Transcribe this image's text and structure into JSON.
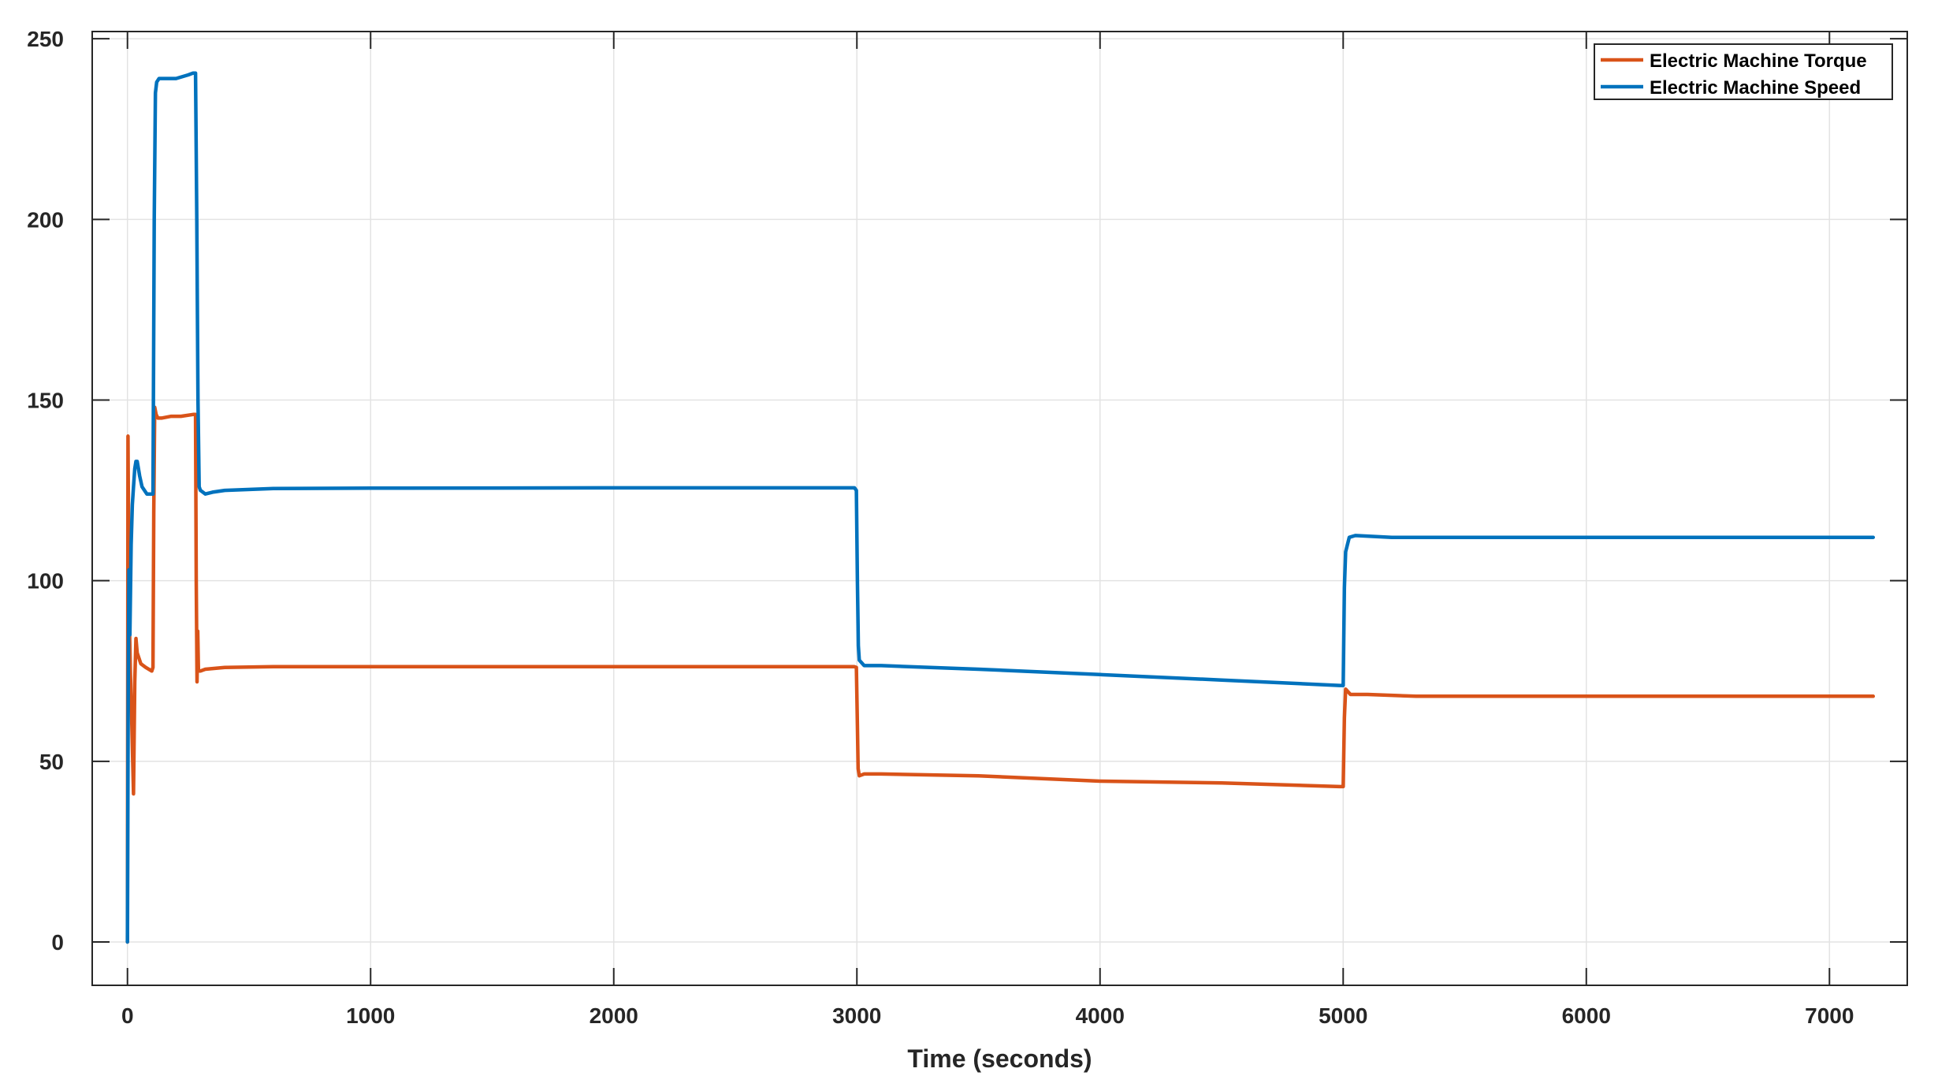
{
  "chart_data": {
    "type": "line",
    "title": "",
    "xlabel": "Time (seconds)",
    "ylabel": "",
    "xlim": [
      -145,
      7320
    ],
    "ylim": [
      -12,
      252
    ],
    "xticks": [
      0,
      1000,
      2000,
      3000,
      4000,
      5000,
      6000,
      7000
    ],
    "yticks": [
      0,
      50,
      100,
      150,
      200,
      250
    ],
    "grid": true,
    "legend_position": "top-right",
    "series": [
      {
        "name": "Electric Machine Torque",
        "color": "#D95319",
        "x": [
          0,
          2,
          5,
          8,
          12,
          18,
          25,
          30,
          35,
          40,
          55,
          75,
          100,
          105,
          108,
          112,
          118,
          125,
          140,
          180,
          220,
          270,
          280,
          283,
          286,
          289,
          292,
          296,
          300,
          320,
          400,
          600,
          1000,
          2000,
          2990,
          2998,
          3002,
          3005,
          3010,
          3030,
          3100,
          3500,
          4000,
          4500,
          4985,
          4995,
          5000,
          5005,
          5010,
          5030,
          5100,
          5300,
          6000,
          6500,
          7000,
          7180
        ],
        "y": [
          0,
          140,
          103,
          88,
          75,
          60,
          41,
          72,
          84,
          80,
          77,
          76,
          75,
          76,
          119,
          148,
          146,
          145,
          145,
          145.5,
          145.5,
          146,
          146,
          100,
          72,
          86,
          75,
          75,
          75,
          75.5,
          76,
          76.2,
          76.2,
          76.2,
          76.2,
          76,
          60,
          48,
          46,
          46.5,
          46.5,
          46,
          44.5,
          44,
          43,
          43,
          43,
          62,
          70,
          68.5,
          68.5,
          68,
          68,
          68,
          68,
          68
        ]
      },
      {
        "name": "Electric Machine Speed",
        "color": "#0072BD",
        "x": [
          0,
          3,
          6,
          10,
          15,
          20,
          25,
          30,
          35,
          40,
          50,
          60,
          80,
          100,
          105,
          110,
          115,
          120,
          130,
          150,
          200,
          250,
          270,
          280,
          285,
          290,
          295,
          300,
          320,
          350,
          400,
          600,
          1000,
          2000,
          2990,
          2998,
          3002,
          3006,
          3010,
          3030,
          3100,
          3500,
          4000,
          4500,
          4985,
          4995,
          5000,
          5005,
          5010,
          5025,
          5050,
          5200,
          6000,
          6500,
          7000,
          7180
        ],
        "y": [
          0,
          70,
          103,
          85,
          110,
          121,
          126,
          131,
          133,
          133,
          129,
          126,
          124,
          124,
          124,
          200,
          235,
          238,
          239,
          239,
          239,
          240,
          240.5,
          240.5,
          200,
          150,
          126,
          125,
          124,
          124.5,
          125,
          125.5,
          125.6,
          125.7,
          125.7,
          125,
          100,
          82,
          78,
          76.5,
          76.5,
          75.5,
          74,
          72.5,
          71,
          71,
          71,
          98,
          108,
          112,
          112.5,
          112,
          112,
          112,
          112,
          112
        ]
      }
    ]
  }
}
